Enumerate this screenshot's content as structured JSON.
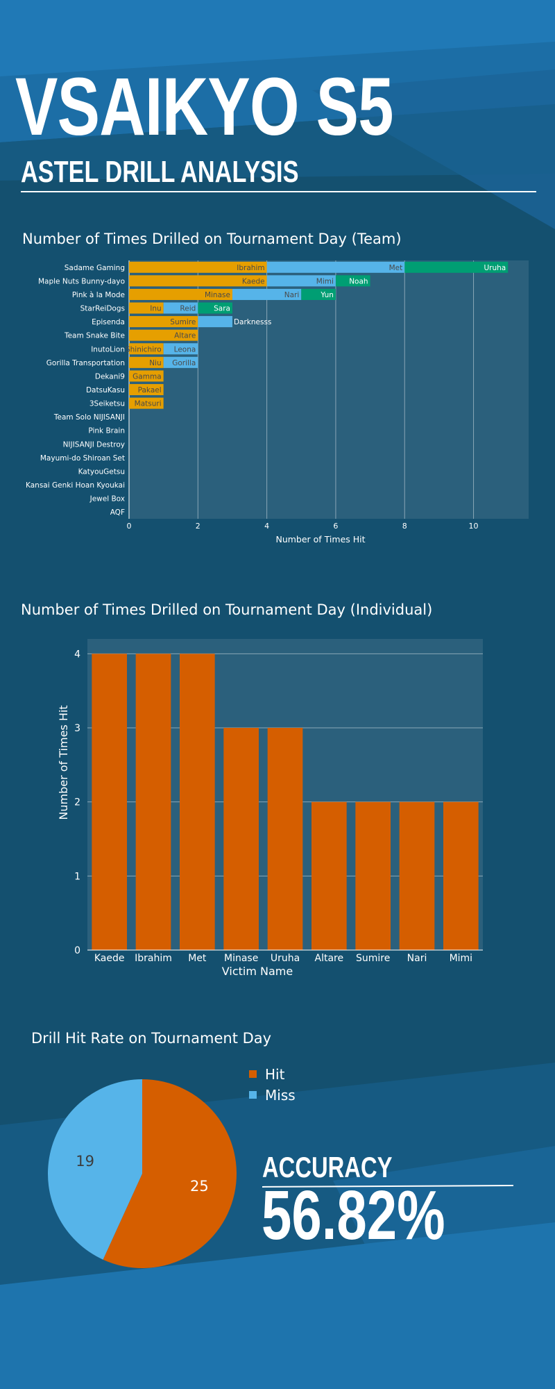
{
  "header": {
    "title": "VSAIKYO S5",
    "subtitle": "ASTEL DRILL ANALYSIS"
  },
  "colors": {
    "background": "#14506f",
    "band_light": "#1e74ad",
    "plot_bg": "#2b607c",
    "orange": "#e69f00",
    "sky": "#56b4e9",
    "green": "#009e73",
    "vermilion": "#d55e00"
  },
  "chart_data": [
    {
      "id": "team",
      "type": "bar",
      "orientation": "horizontal",
      "stacked": true,
      "title": "Number of Times Drilled on Tournament Day (Team)",
      "xlabel": "Number of Times Hit",
      "ylabel": "",
      "xlim": [
        0,
        11.6
      ],
      "xticks": [
        0,
        2,
        4,
        6,
        8,
        10
      ],
      "grid": true,
      "categories": [
        "Sadame Gaming",
        "Maple Nuts Bunny-dayo",
        "Pink à la Mode",
        "StarReiDogs",
        "Episenda",
        "Team Snake Bite",
        "InutoLion",
        "Gorilla Transportation",
        "Dekani9",
        "DatsuKasu",
        "3Seiketsu",
        "Team Solo NIJISANJI",
        "Pink Brain",
        "NIJISANJI Destroy",
        "Mayumi-do Shiroan Set",
        "KatyouGetsu",
        "Kansai Genki Hoan Kyoukai",
        "Jewel Box",
        "AQF"
      ],
      "segments": [
        {
          "team": "Sadame Gaming",
          "victim": "Ibrahim",
          "value": 4,
          "color": "orange"
        },
        {
          "team": "Sadame Gaming",
          "victim": "Met",
          "value": 4,
          "color": "sky"
        },
        {
          "team": "Sadame Gaming",
          "victim": "Uruha",
          "value": 3,
          "color": "green"
        },
        {
          "team": "Maple Nuts Bunny-dayo",
          "victim": "Kaede",
          "value": 4,
          "color": "orange"
        },
        {
          "team": "Maple Nuts Bunny-dayo",
          "victim": "Mimi",
          "value": 2,
          "color": "sky"
        },
        {
          "team": "Maple Nuts Bunny-dayo",
          "victim": "Noah",
          "value": 1,
          "color": "green"
        },
        {
          "team": "Pink à la Mode",
          "victim": "Minase",
          "value": 3,
          "color": "orange"
        },
        {
          "team": "Pink à la Mode",
          "victim": "Nari",
          "value": 2,
          "color": "sky"
        },
        {
          "team": "Pink à la Mode",
          "victim": "Yun",
          "value": 1,
          "color": "green"
        },
        {
          "team": "StarReiDogs",
          "victim": "Inu",
          "value": 1,
          "color": "orange"
        },
        {
          "team": "StarReiDogs",
          "victim": "Reid",
          "value": 1,
          "color": "sky"
        },
        {
          "team": "StarReiDogs",
          "victim": "Sara",
          "value": 1,
          "color": "green"
        },
        {
          "team": "Episenda",
          "victim": "Sumire",
          "value": 2,
          "color": "orange"
        },
        {
          "team": "Episenda",
          "victim": "Darknesss",
          "value": 1,
          "color": "sky"
        },
        {
          "team": "Team Snake Bite",
          "victim": "Altare",
          "value": 2,
          "color": "orange"
        },
        {
          "team": "InutoLion",
          "victim": "Shinichiro",
          "value": 1,
          "color": "orange"
        },
        {
          "team": "InutoLion",
          "victim": "Leona",
          "value": 1,
          "color": "sky"
        },
        {
          "team": "Gorilla Transportation",
          "victim": "Niu",
          "value": 1,
          "color": "orange"
        },
        {
          "team": "Gorilla Transportation",
          "victim": "Gorilla",
          "value": 1,
          "color": "sky"
        },
        {
          "team": "Dekani9",
          "victim": "Gamma",
          "value": 1,
          "color": "orange"
        },
        {
          "team": "DatsuKasu",
          "victim": "Pakael",
          "value": 1,
          "color": "orange"
        },
        {
          "team": "3Seiketsu",
          "victim": "Matsuri",
          "value": 1,
          "color": "orange"
        }
      ]
    },
    {
      "id": "individual",
      "type": "bar",
      "title": "Number of Times Drilled on Tournament Day (Individual)",
      "xlabel": "Victim Name",
      "ylabel": "Number of Times Hit",
      "ylim": [
        0,
        4.2
      ],
      "yticks": [
        0,
        1,
        2,
        3,
        4
      ],
      "grid": true,
      "categories": [
        "Kaede",
        "Ibrahim",
        "Met",
        "Minase",
        "Uruha",
        "Altare",
        "Sumire",
        "Nari",
        "Mimi"
      ],
      "values": [
        4,
        4,
        4,
        3,
        3,
        2,
        2,
        2,
        2
      ]
    },
    {
      "id": "hitrate",
      "type": "pie",
      "title": "Drill Hit Rate on Tournament Day",
      "labels": [
        "Hit",
        "Miss"
      ],
      "values": [
        25,
        19
      ],
      "legend": "top-right"
    }
  ],
  "accuracy": {
    "label": "ACCURACY",
    "value": "56.82%"
  }
}
